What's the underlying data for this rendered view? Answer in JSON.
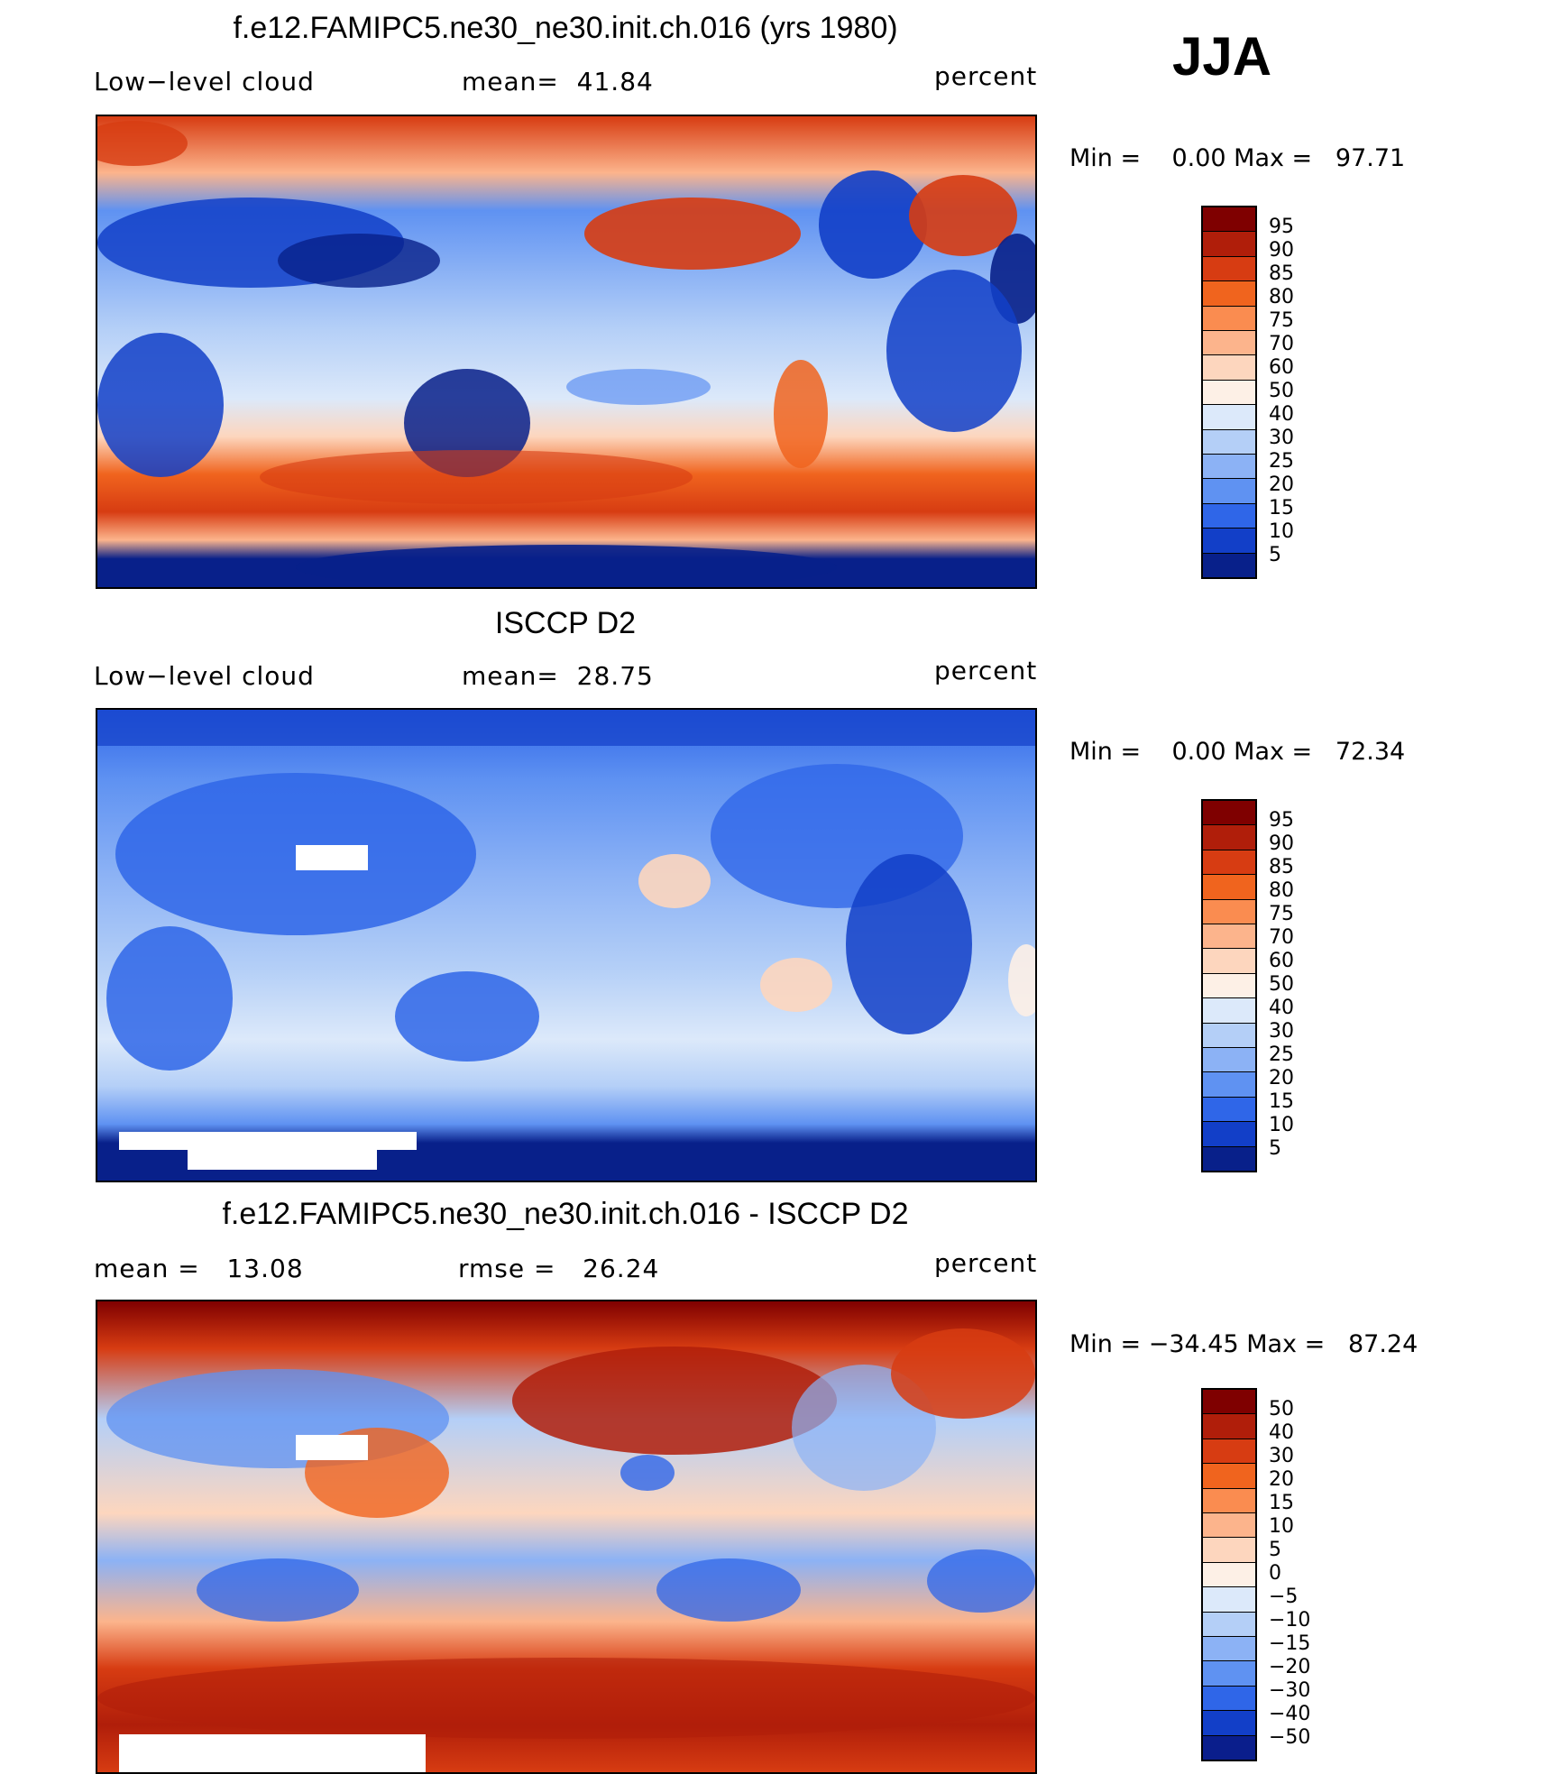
{
  "season": "JJA",
  "panels": [
    {
      "title": "f.e12.FAMIPC5.ne30_ne30.init.ch.016 (yrs 1980)",
      "left_label": "Low−level cloud",
      "center_label": "mean=  41.84",
      "units": "percent",
      "minmax": "Min =    0.00 Max =   97.71",
      "colorbar_labels": [
        "95",
        "90",
        "85",
        "80",
        "75",
        "70",
        "60",
        "50",
        "40",
        "30",
        "25",
        "20",
        "15",
        "10",
        "5"
      ]
    },
    {
      "title": "ISCCP D2",
      "left_label": "Low−level cloud",
      "center_label": "mean=  28.75",
      "units": "percent",
      "minmax": "Min =    0.00 Max =   72.34",
      "colorbar_labels": [
        "95",
        "90",
        "85",
        "80",
        "75",
        "70",
        "60",
        "50",
        "40",
        "30",
        "25",
        "20",
        "15",
        "10",
        "5"
      ]
    },
    {
      "title": "f.e12.FAMIPC5.ne30_ne30.init.ch.016 - ISCCP D2",
      "left_label": "mean =   13.08",
      "center_label": "rmse =   26.24",
      "units": "percent",
      "minmax": "Min = −34.45 Max =   87.24",
      "colorbar_labels": [
        "50",
        "40",
        "30",
        "20",
        "15",
        "10",
        "5",
        "0",
        "−5",
        "−10",
        "−15",
        "−20",
        "−30",
        "−40",
        "−50"
      ]
    }
  ],
  "colors": {
    "colorbar": [
      "#7f0000",
      "#b01e0a",
      "#d73c12",
      "#f0641e",
      "#fa8c50",
      "#fcb48c",
      "#fdd6be",
      "#fdf0e6",
      "#dce9fa",
      "#b4cff7",
      "#8cb2f5",
      "#5f92f2",
      "#2f66e8",
      "#123fc8",
      "#08208a"
    ],
    "diff_colorbar": [
      "#7f0000",
      "#b01e0a",
      "#d73c12",
      "#f0641e",
      "#fa8c50",
      "#fcb48c",
      "#fdd6be",
      "#fdf0e6",
      "#dce9fa",
      "#b4cff7",
      "#8cb2f5",
      "#5f92f2",
      "#2f66e8",
      "#123fc8",
      "#0a1e8c"
    ]
  }
}
